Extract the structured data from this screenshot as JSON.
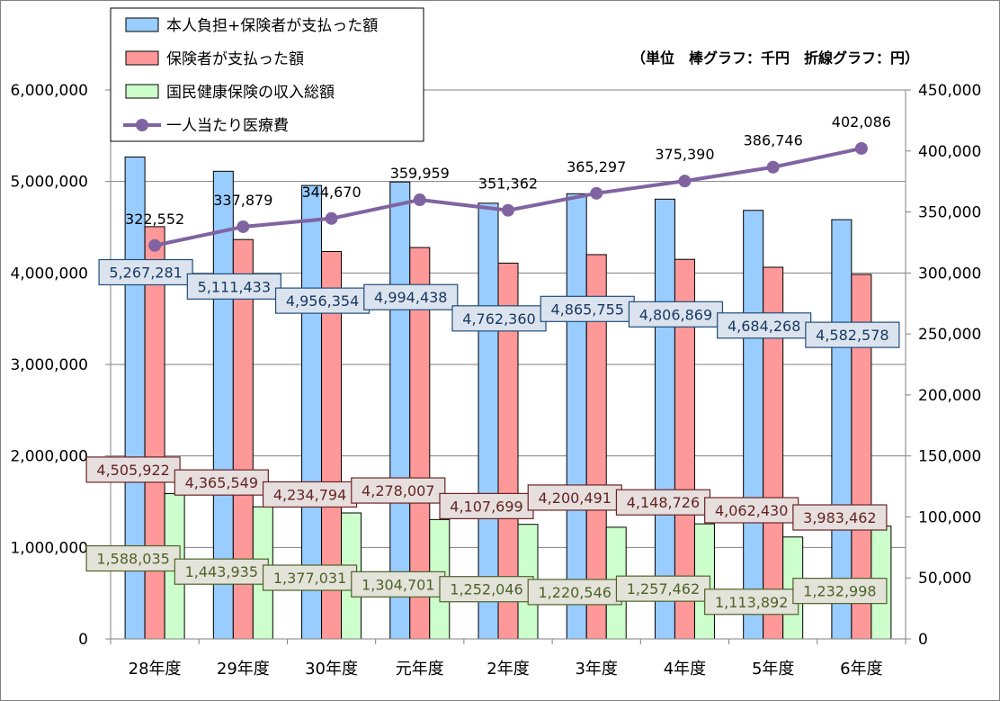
{
  "chart_data": {
    "type": "bar",
    "title": "",
    "unit_note": "（単位　棒グラフ：千円　折線グラフ：円）",
    "categories": [
      "28年度",
      "29年度",
      "30年度",
      "元年度",
      "2年度",
      "3年度",
      "4年度",
      "5年度",
      "6年度"
    ],
    "series": [
      {
        "name": "本人負担+保険者が支払った額",
        "type": "bar",
        "axis": "left",
        "color": "#99ccff",
        "values": [
          5267281,
          5111433,
          4956354,
          4994438,
          4762360,
          4865755,
          4806869,
          4684268,
          4582578
        ],
        "labels": [
          "5,267,281",
          "5,111,433",
          "4,956,354",
          "4,994,438",
          "4,762,360",
          "4,865,755",
          "4,806,869",
          "4,684,268",
          "4,582,578"
        ]
      },
      {
        "name": "保険者が支払った額",
        "type": "bar",
        "axis": "left",
        "color": "#ff9999",
        "values": [
          4505922,
          4365549,
          4234794,
          4278007,
          4107699,
          4200491,
          4148726,
          4062430,
          3983462
        ],
        "labels": [
          "4,505,922",
          "4,365,549",
          "4,234,794",
          "4,278,007",
          "4,107,699",
          "4,200,491",
          "4,148,726",
          "4,062,430",
          "3,983,462"
        ]
      },
      {
        "name": "国民健康保険の収入総額",
        "type": "bar",
        "axis": "left",
        "color": "#ccffcc",
        "values": [
          1588035,
          1443935,
          1377031,
          1304701,
          1252046,
          1220546,
          1257462,
          1113892,
          1232998
        ],
        "labels": [
          "1,588,035",
          "1,443,935",
          "1,377,031",
          "1,304,701",
          "1,252,046",
          "1,220,546",
          "1,257,462",
          "1,113,892",
          "1,232,998"
        ]
      },
      {
        "name": "一人当たり医療費",
        "type": "line",
        "axis": "right",
        "color": "#8064a2",
        "values": [
          322552,
          337879,
          344670,
          359959,
          351362,
          365297,
          375390,
          386746,
          402086
        ],
        "labels": [
          "322,552",
          "337,879",
          "344,670",
          "359,959",
          "351,362",
          "365,297",
          "375,390",
          "386,746",
          "402,086"
        ]
      }
    ],
    "y_left": {
      "ylim": [
        0,
        6000000
      ],
      "ticks": [
        0,
        1000000,
        2000000,
        3000000,
        4000000,
        5000000,
        6000000
      ],
      "tick_labels": [
        "0",
        "1,000,000",
        "2,000,000",
        "3,000,000",
        "4,000,000",
        "5,000,000",
        "6,000,000"
      ]
    },
    "y_right": {
      "ylim": [
        0,
        450000
      ],
      "ticks": [
        0,
        50000,
        100000,
        150000,
        200000,
        250000,
        300000,
        350000,
        400000,
        450000
      ],
      "tick_labels": [
        "0",
        "50,000",
        "100,000",
        "150,000",
        "200,000",
        "250,000",
        "300,000",
        "350,000",
        "400,000",
        "450,000"
      ]
    },
    "grid": true,
    "legend_position": "top-left"
  }
}
